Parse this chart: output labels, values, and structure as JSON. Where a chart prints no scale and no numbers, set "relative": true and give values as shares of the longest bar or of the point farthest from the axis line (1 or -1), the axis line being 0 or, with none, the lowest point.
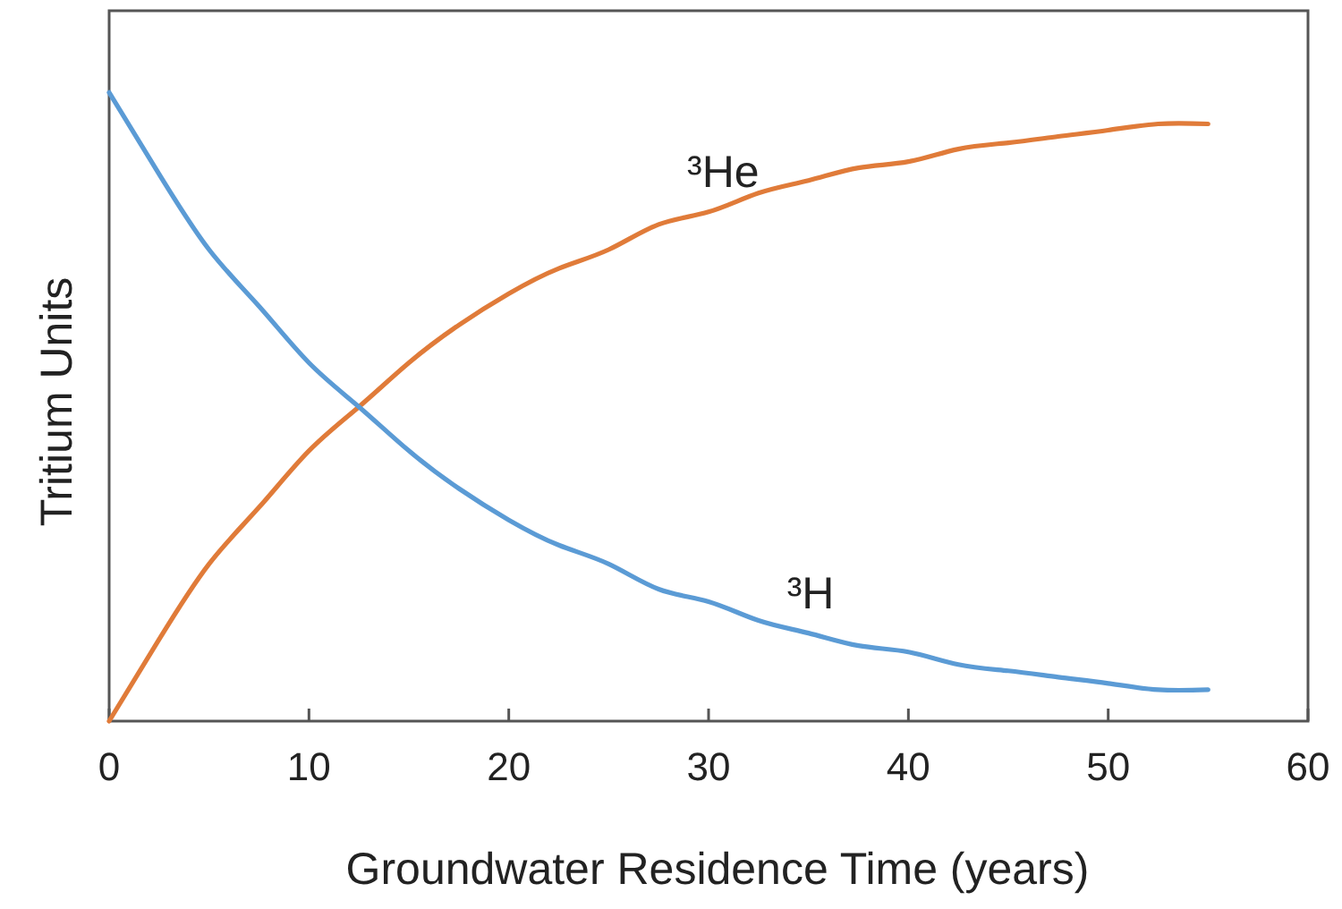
{
  "chart_data": {
    "type": "line",
    "relative": true,
    "xlabel": "Groundwater Residence Time (years)",
    "ylabel": "Tritium Units",
    "x": [
      0,
      2.5,
      5,
      7.5,
      10,
      12.5,
      15,
      17.5,
      20,
      22.5,
      25,
      27.5,
      30,
      32.5,
      35,
      37.5,
      40,
      42.5,
      45,
      47.5,
      50,
      52.5,
      55
    ],
    "xlim": [
      0,
      60
    ],
    "xticks": [
      0,
      10,
      20,
      30,
      40,
      50,
      60
    ],
    "line_style": "solid",
    "marker": "none",
    "series": [
      {
        "name": "³He",
        "color": "#e07b39",
        "values": [
          0,
          0.13,
          0.25,
          0.34,
          0.43,
          0.5,
          0.57,
          0.63,
          0.68,
          0.72,
          0.75,
          0.79,
          0.81,
          0.84,
          0.86,
          0.88,
          0.89,
          0.91,
          0.92,
          0.93,
          0.94,
          0.95,
          0.95
        ]
      },
      {
        "name": "³H",
        "color": "#5b9bd5",
        "values": [
          1,
          0.87,
          0.75,
          0.66,
          0.57,
          0.5,
          0.43,
          0.37,
          0.32,
          0.28,
          0.25,
          0.21,
          0.19,
          0.16,
          0.14,
          0.12,
          0.11,
          0.09,
          0.08,
          0.07,
          0.06,
          0.05,
          0.05
        ]
      }
    ]
  }
}
